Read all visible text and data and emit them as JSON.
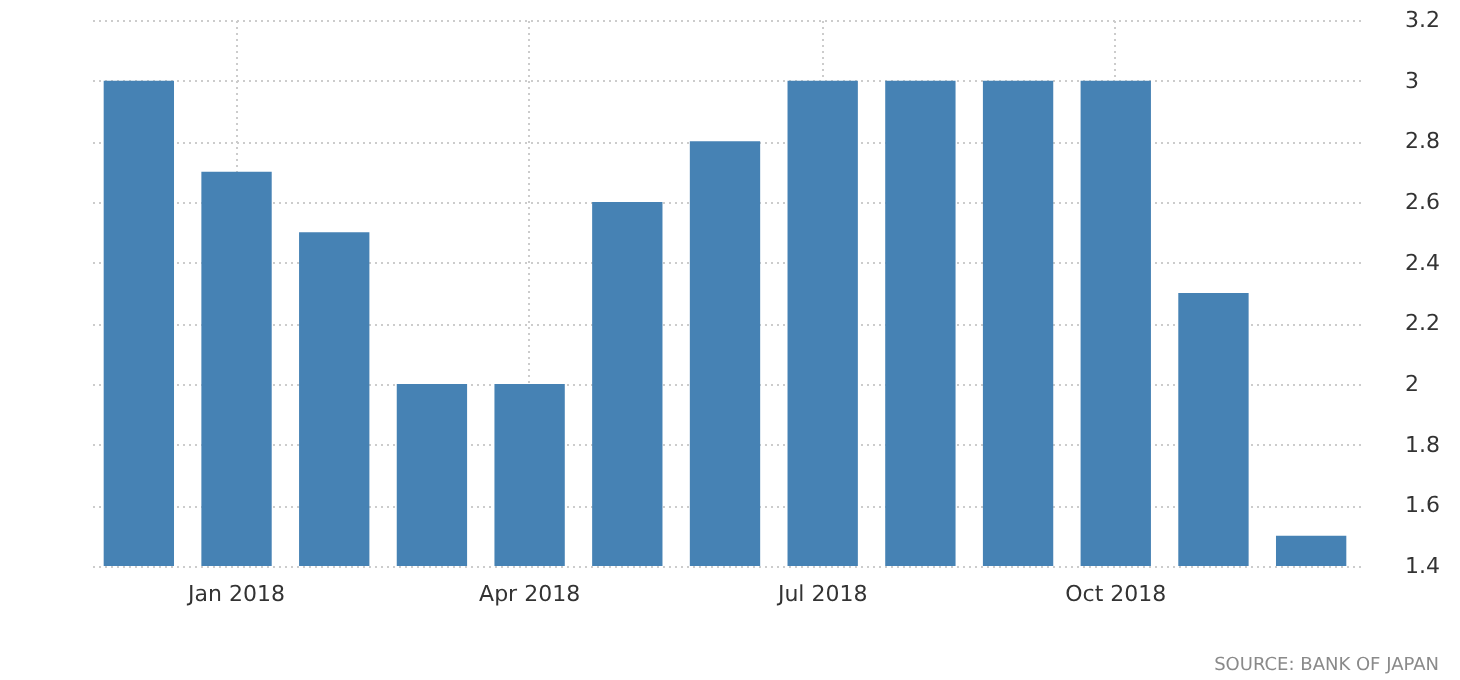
{
  "chart_data": {
    "type": "bar",
    "categories": [
      null,
      "Jan 2018",
      null,
      null,
      "Apr 2018",
      null,
      null,
      "Jul 2018",
      null,
      null,
      "Oct 2018",
      null,
      null
    ],
    "values": [
      3,
      2.7,
      2.5,
      2,
      2,
      2.6,
      2.8,
      3,
      3,
      3,
      3,
      2.3,
      1.5
    ],
    "color": "#4682b4",
    "ylim": [
      1.4,
      3.2
    ],
    "yticks": [
      1.4,
      1.6,
      1.8,
      2,
      2.2,
      2.4,
      2.6,
      2.8,
      3,
      3.2
    ],
    "grid": true,
    "annotations": [
      "SOURCE: BANK OF JAPAN"
    ]
  }
}
